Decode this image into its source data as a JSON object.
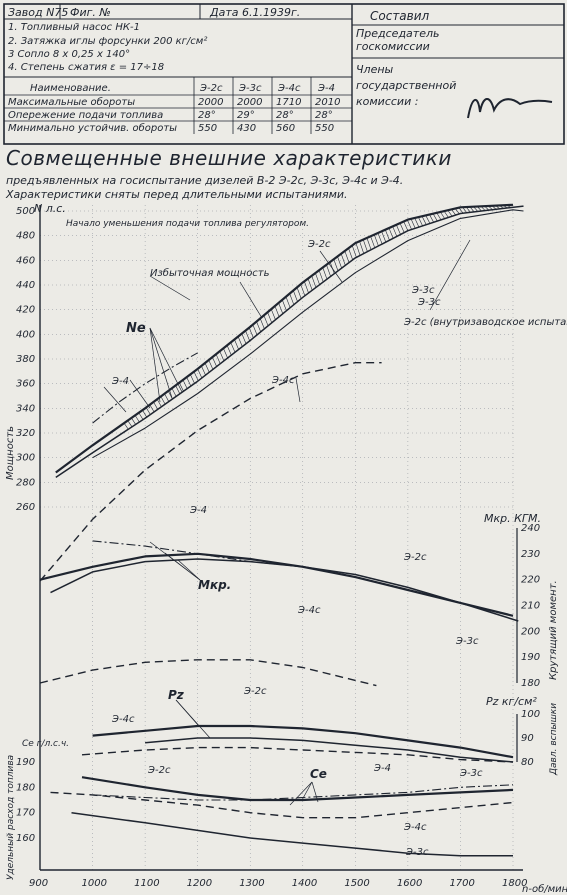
{
  "header": {
    "plant": "Завод N75",
    "figure": "Фиг. №",
    "date": "Дата 6.1.1939г.",
    "compiled": "Составил",
    "chairman": "Председатель госкомиссии",
    "members": "Члены государственной комиссии :",
    "notes": [
      "1. Топливный насос НК-1",
      "2. Затяжка иглы форсунки 200 кг/см²",
      "3 Сопло 8 x 0,25 x 140°",
      "4. Степень сжатия ε = 17÷18"
    ]
  },
  "table": {
    "columns": [
      "Наименование.",
      "Э-2с",
      "Э-3с",
      "Э-4с",
      "Э-4"
    ],
    "rows": [
      [
        "Максимальные обороты",
        "2000",
        "2000",
        "1710",
        "2010"
      ],
      [
        "Опережение подачи топлива",
        "28°",
        "29°",
        "28°",
        "28°"
      ],
      [
        "Минимально устойчив. обороты",
        "550",
        "430",
        "560",
        "550"
      ]
    ]
  },
  "title": "Совмещенные внешние характеристики",
  "subtitle1": "предъявленных на госиспытание дизелей В-2 Э-2с, Э-3с, Э-4с и Э-4.",
  "subtitle2": "Характеристики сняты перед длительными испытаниями.",
  "annotations": {
    "regulator": "Начало уменьшения подачи топлива регулятором.",
    "excess": "Избыточная мощность",
    "ne": "Ne",
    "mkr": "Mкр.",
    "pz": "Pz",
    "ce": "Ce",
    "e2c_note": "Э-2с (внутризаводское испытание)",
    "e2c": "Э-2с",
    "e3c": "Э-3с",
    "e4c": "Э-4с",
    "e4": "Э-4"
  },
  "axes": {
    "power_unit": "N л.с.",
    "power_label": "Мощность",
    "torque_unit": "Mкр. КГМ.",
    "torque_label": "Крутящий момент.",
    "pz_unit": "Pz кг/см²",
    "pz_label": "Давл. вспышки",
    "ce_unit": "Ce г/л.с.ч.",
    "ce_label": "Удельный расход топлива",
    "x_label": "n-об/мин"
  },
  "chart_data": {
    "type": "line",
    "x_ticks": [
      900,
      1000,
      1100,
      1200,
      1300,
      1400,
      1500,
      1600,
      1700,
      1800
    ],
    "power": {
      "ticks": [
        260,
        280,
        300,
        320,
        340,
        360,
        380,
        400,
        420,
        440,
        460,
        480,
        500
      ],
      "series": [
        {
          "name": "Э-2с",
          "x": [
            930,
            1000,
            1100,
            1200,
            1300,
            1400,
            1500,
            1600,
            1700,
            1800
          ],
          "y": [
            288,
            310,
            340,
            372,
            406,
            442,
            474,
            493,
            503,
            505
          ]
        },
        {
          "name": "Э-3с",
          "x": [
            930,
            1000,
            1100,
            1200,
            1300,
            1400,
            1500,
            1600,
            1700,
            1820
          ],
          "y": [
            284,
            304,
            332,
            362,
            395,
            430,
            462,
            484,
            498,
            504
          ]
        },
        {
          "name": "Э-2с (внутризаводское испытание)",
          "x": [
            1000,
            1100,
            1200,
            1300,
            1400,
            1500,
            1600,
            1700,
            1800,
            1820
          ],
          "y": [
            300,
            324,
            352,
            384,
            418,
            450,
            476,
            494,
            501,
            500
          ]
        },
        {
          "name": "Э-4",
          "x": [
            1000,
            1050,
            1100,
            1150,
            1200
          ],
          "y": [
            328,
            345,
            360,
            373,
            385
          ]
        },
        {
          "name": "Э-4с",
          "x": [
            900,
            1000,
            1100,
            1200,
            1300,
            1400,
            1500,
            1550
          ],
          "y": [
            200,
            250,
            290,
            322,
            348,
            368,
            377,
            377
          ]
        }
      ]
    },
    "torque": {
      "ticks": [
        180,
        190,
        200,
        210,
        220,
        230,
        240
      ],
      "series": [
        {
          "name": "Э-2с",
          "x": [
            900,
            1000,
            1100,
            1200,
            1300,
            1400,
            1500,
            1600,
            1700,
            1800
          ],
          "y": [
            220,
            225,
            229,
            230,
            228,
            225,
            221,
            216,
            211,
            206
          ]
        },
        {
          "name": "Э-3с",
          "x": [
            920,
            1000,
            1100,
            1200,
            1300,
            1400,
            1500,
            1600,
            1700,
            1810
          ],
          "y": [
            215,
            223,
            227,
            228,
            227,
            225,
            222,
            217,
            211,
            204
          ]
        },
        {
          "name": "Э-4",
          "x": [
            1000,
            1100,
            1200,
            1300,
            1400
          ],
          "y": [
            235,
            233,
            230,
            227,
            225
          ]
        },
        {
          "name": "Э-4с",
          "x": [
            900,
            1000,
            1100,
            1200,
            1300,
            1400,
            1500,
            1540
          ],
          "y": [
            180,
            185,
            188,
            189,
            189,
            186,
            181,
            179
          ]
        }
      ]
    },
    "pz": {
      "ticks": [
        80,
        90,
        100
      ],
      "series": [
        {
          "name": "Э-2с",
          "x": [
            1000,
            1100,
            1200,
            1300,
            1400,
            1500,
            1600,
            1700,
            1800
          ],
          "y": [
            91,
            93,
            95,
            95,
            94,
            92,
            89,
            86,
            82
          ]
        },
        {
          "name": "Э-3с",
          "x": [
            1100,
            1200,
            1300,
            1400,
            1500,
            1600,
            1700,
            1800
          ],
          "y": [
            88,
            90,
            90,
            89,
            87,
            85,
            82,
            80
          ]
        },
        {
          "name": "Э-4с",
          "x": [
            980,
            1100,
            1200,
            1300,
            1400,
            1500,
            1600,
            1700,
            1800
          ],
          "y": [
            83,
            85,
            86,
            86,
            85,
            84,
            83,
            81,
            80
          ]
        }
      ]
    },
    "ce": {
      "ticks": [
        160,
        170,
        180,
        190
      ],
      "series": [
        {
          "name": "Э-2с",
          "x": [
            980,
            1100,
            1200,
            1300,
            1400,
            1500,
            1600,
            1700,
            1800
          ],
          "y": [
            184,
            180,
            177,
            175,
            175,
            176,
            177,
            178,
            179
          ]
        },
        {
          "name": "Э-3с",
          "x": [
            960,
            1100,
            1200,
            1300,
            1400,
            1500,
            1600,
            1700,
            1800
          ],
          "y": [
            170,
            166,
            163,
            160,
            158,
            156,
            154,
            153,
            153
          ]
        },
        {
          "name": "Э-4",
          "x": [
            1000,
            1100,
            1200,
            1300,
            1400,
            1500,
            1600,
            1700,
            1800
          ],
          "y": [
            177,
            176,
            175,
            175,
            176,
            177,
            178,
            180,
            181
          ]
        },
        {
          "name": "Э-4с",
          "x": [
            920,
            1000,
            1100,
            1200,
            1300,
            1400,
            1500,
            1600,
            1700,
            1800
          ],
          "y": [
            178,
            177,
            175,
            173,
            170,
            168,
            168,
            170,
            172,
            174
          ]
        }
      ]
    }
  }
}
